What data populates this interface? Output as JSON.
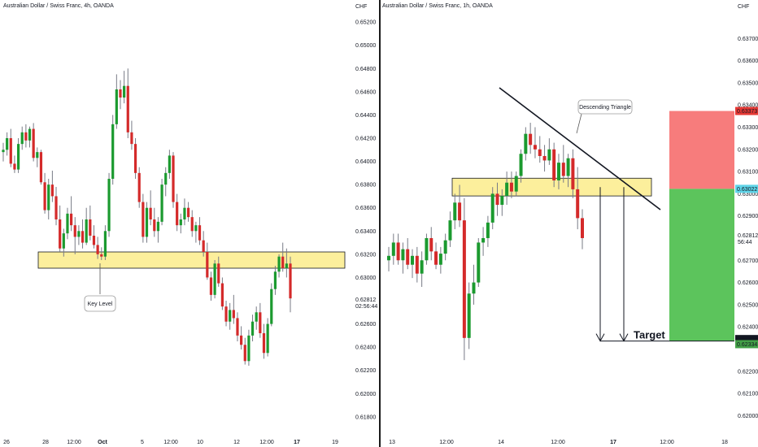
{
  "chart_data": [
    {
      "type": "candlestick",
      "title": "Australian Dollar / Swiss Franc, 4h, OANDA",
      "currency_label": "CHF",
      "y_ticks": [
        "0.65200",
        "0.65000",
        "0.64800",
        "0.64600",
        "0.64400",
        "0.64200",
        "0.64000",
        "0.63800",
        "0.63600",
        "0.63400",
        "0.63200",
        "0.63000",
        "0.62600",
        "0.62400",
        "0.62200",
        "0.62000",
        "0.61800"
      ],
      "price_badge": "0.62812",
      "countdown_badge": "02:56:44",
      "x_ticks": [
        "26",
        "28",
        "12:00",
        "Oct",
        "5",
        "12:00",
        "10",
        "12",
        "12:00",
        "17",
        "19"
      ],
      "ylim": [
        0.6175,
        0.6525
      ],
      "zone": [
        0.6308,
        0.6322
      ],
      "annotation": "Key Level",
      "colors": {
        "up": "#1b9a2f",
        "down": "#d42a2a",
        "zone": "#fcef9c",
        "wick": "#787b86"
      },
      "candles": [
        [
          0.6408,
          0.6416,
          0.64,
          0.641
        ],
        [
          0.641,
          0.6425,
          0.6405,
          0.642
        ],
        [
          0.642,
          0.6428,
          0.6395,
          0.6398
        ],
        [
          0.6398,
          0.6405,
          0.639,
          0.6393
        ],
        [
          0.6393,
          0.642,
          0.639,
          0.6415
        ],
        [
          0.6415,
          0.643,
          0.641,
          0.6425
        ],
        [
          0.6425,
          0.6432,
          0.6412,
          0.6418
        ],
        [
          0.6418,
          0.643,
          0.6412,
          0.6428
        ],
        [
          0.6428,
          0.6433,
          0.64,
          0.6403
        ],
        [
          0.6403,
          0.6412,
          0.6395,
          0.6408
        ],
        [
          0.6408,
          0.641,
          0.638,
          0.6382
        ],
        [
          0.6382,
          0.639,
          0.6355,
          0.6358
        ],
        [
          0.6358,
          0.6385,
          0.635,
          0.638
        ],
        [
          0.638,
          0.6392,
          0.6365,
          0.637
        ],
        [
          0.637,
          0.6378,
          0.6345,
          0.635
        ],
        [
          0.635,
          0.6362,
          0.6322,
          0.6325
        ],
        [
          0.6325,
          0.6342,
          0.6318,
          0.6338
        ],
        [
          0.6338,
          0.636,
          0.6333,
          0.6355
        ],
        [
          0.6355,
          0.637,
          0.634,
          0.6345
        ],
        [
          0.6345,
          0.6352,
          0.632,
          0.6335
        ],
        [
          0.6335,
          0.6345,
          0.6328,
          0.634
        ],
        [
          0.634,
          0.635,
          0.6325,
          0.633
        ],
        [
          0.633,
          0.636,
          0.6328,
          0.635
        ],
        [
          0.635,
          0.6362,
          0.6332,
          0.6336
        ],
        [
          0.6336,
          0.6345,
          0.6325,
          0.6328
        ],
        [
          0.6328,
          0.6335,
          0.6316,
          0.632
        ],
        [
          0.632,
          0.6326,
          0.6315,
          0.6318
        ],
        [
          0.6318,
          0.6345,
          0.6315,
          0.634
        ],
        [
          0.634,
          0.639,
          0.6335,
          0.6385
        ],
        [
          0.6385,
          0.644,
          0.638,
          0.6432
        ],
        [
          0.6432,
          0.6475,
          0.6428,
          0.6462
        ],
        [
          0.6462,
          0.647,
          0.6445,
          0.6455
        ],
        [
          0.6455,
          0.6478,
          0.645,
          0.6465
        ],
        [
          0.6465,
          0.648,
          0.642,
          0.6425
        ],
        [
          0.6425,
          0.6435,
          0.641,
          0.6415
        ],
        [
          0.6415,
          0.642,
          0.6385,
          0.639
        ],
        [
          0.639,
          0.6395,
          0.636,
          0.6365
        ],
        [
          0.6365,
          0.6372,
          0.633,
          0.6335
        ],
        [
          0.6335,
          0.6365,
          0.633,
          0.636
        ],
        [
          0.636,
          0.6375,
          0.6345,
          0.635
        ],
        [
          0.635,
          0.636,
          0.6335,
          0.634
        ],
        [
          0.634,
          0.6352,
          0.633,
          0.6348
        ],
        [
          0.6348,
          0.6385,
          0.6345,
          0.638
        ],
        [
          0.638,
          0.6395,
          0.637,
          0.639
        ],
        [
          0.639,
          0.641,
          0.6385,
          0.6405
        ],
        [
          0.6405,
          0.6408,
          0.636,
          0.6365
        ],
        [
          0.6365,
          0.6372,
          0.634,
          0.6345
        ],
        [
          0.6345,
          0.6355,
          0.6338,
          0.635
        ],
        [
          0.635,
          0.6368,
          0.6345,
          0.636
        ],
        [
          0.636,
          0.6365,
          0.6348,
          0.6352
        ],
        [
          0.6352,
          0.6358,
          0.6335,
          0.634
        ],
        [
          0.634,
          0.6348,
          0.633,
          0.6345
        ],
        [
          0.6345,
          0.6352,
          0.6328,
          0.6332
        ],
        [
          0.6332,
          0.634,
          0.6318,
          0.6322
        ],
        [
          0.6322,
          0.633,
          0.6298,
          0.63
        ],
        [
          0.63,
          0.6305,
          0.628,
          0.6285
        ],
        [
          0.6285,
          0.6315,
          0.6282,
          0.6312
        ],
        [
          0.6312,
          0.6318,
          0.6292,
          0.6295
        ],
        [
          0.6295,
          0.63,
          0.6272,
          0.6275
        ],
        [
          0.6275,
          0.628,
          0.6258,
          0.6262
        ],
        [
          0.6262,
          0.6278,
          0.6255,
          0.6272
        ],
        [
          0.6272,
          0.6285,
          0.626,
          0.6265
        ],
        [
          0.6265,
          0.627,
          0.6245,
          0.625
        ],
        [
          0.625,
          0.6258,
          0.6238,
          0.6242
        ],
        [
          0.6242,
          0.6248,
          0.6225,
          0.6228
        ],
        [
          0.6228,
          0.6255,
          0.6224,
          0.625
        ],
        [
          0.625,
          0.6268,
          0.6245,
          0.6262
        ],
        [
          0.6262,
          0.6275,
          0.6255,
          0.627
        ],
        [
          0.627,
          0.6278,
          0.6248,
          0.6252
        ],
        [
          0.6252,
          0.626,
          0.623,
          0.6235
        ],
        [
          0.6235,
          0.6265,
          0.6232,
          0.626
        ],
        [
          0.626,
          0.6295,
          0.6258,
          0.629
        ],
        [
          0.629,
          0.631,
          0.6285,
          0.6305
        ],
        [
          0.6305,
          0.632,
          0.63,
          0.6318
        ],
        [
          0.6318,
          0.633,
          0.6305,
          0.6308
        ],
        [
          0.6308,
          0.6325,
          0.63,
          0.6312
        ],
        [
          0.6312,
          0.6318,
          0.627,
          0.6282
        ]
      ]
    },
    {
      "type": "candlestick",
      "title": "Australian Dollar / Swiss Franc, 1h, OANDA",
      "currency_label": "CHF",
      "y_ticks": [
        "0.63700",
        "0.63600",
        "0.63500",
        "0.63400",
        "0.63300",
        "0.63200",
        "0.63100",
        "0.63000",
        "0.62900",
        "0.62700",
        "0.62600",
        "0.62500",
        "0.62400",
        "0.62200",
        "0.62100",
        "0.62000"
      ],
      "price_badges": {
        "stop": "0.63373",
        "entry": "0.63022",
        "current": "0.62812",
        "countdown": "56:44",
        "target": "0.62336",
        "target2": "0.62334"
      },
      "x_ticks": [
        "13",
        "12:00",
        "14",
        "12:00",
        "17",
        "12:00",
        "18"
      ],
      "ylim": [
        0.6195,
        0.638
      ],
      "zone": [
        0.6299,
        0.6307
      ],
      "annotations": [
        "Descending Triangle",
        "Target"
      ],
      "colors": {
        "up": "#1b9a2f",
        "down": "#d42a2a",
        "zone": "#fcef9c",
        "stop": "#f77c7c",
        "target_box": "#5cc45c"
      },
      "candles": [
        [
          0.627,
          0.6276,
          0.6265,
          0.6272
        ],
        [
          0.6272,
          0.6282,
          0.6268,
          0.6278
        ],
        [
          0.6278,
          0.6282,
          0.6268,
          0.627
        ],
        [
          0.627,
          0.6278,
          0.6264,
          0.6275
        ],
        [
          0.6275,
          0.628,
          0.6266,
          0.6268
        ],
        [
          0.6268,
          0.6275,
          0.6262,
          0.6272
        ],
        [
          0.6272,
          0.6276,
          0.626,
          0.6264
        ],
        [
          0.6264,
          0.6274,
          0.6258,
          0.627
        ],
        [
          0.627,
          0.6282,
          0.6268,
          0.628
        ],
        [
          0.628,
          0.6285,
          0.627,
          0.6274
        ],
        [
          0.6274,
          0.6278,
          0.6266,
          0.6268
        ],
        [
          0.6268,
          0.6276,
          0.6264,
          0.6273
        ],
        [
          0.6273,
          0.6282,
          0.627,
          0.6279
        ],
        [
          0.6279,
          0.6292,
          0.6276,
          0.6288
        ],
        [
          0.6288,
          0.63,
          0.6284,
          0.6296
        ],
        [
          0.6296,
          0.6304,
          0.6285,
          0.6288
        ],
        [
          0.6288,
          0.6298,
          0.6225,
          0.6235
        ],
        [
          0.6235,
          0.626,
          0.623,
          0.6255
        ],
        [
          0.6255,
          0.6268,
          0.625,
          0.626
        ],
        [
          0.626,
          0.628,
          0.6258,
          0.6278
        ],
        [
          0.6278,
          0.6285,
          0.6272,
          0.628
        ],
        [
          0.628,
          0.629,
          0.6276,
          0.6287
        ],
        [
          0.6287,
          0.6303,
          0.6284,
          0.63
        ],
        [
          0.63,
          0.6305,
          0.629,
          0.6295
        ],
        [
          0.6295,
          0.6302,
          0.629,
          0.6299
        ],
        [
          0.6299,
          0.631,
          0.6295,
          0.6305
        ],
        [
          0.6305,
          0.631,
          0.6298,
          0.6301
        ],
        [
          0.6301,
          0.631,
          0.6299,
          0.6308
        ],
        [
          0.6308,
          0.632,
          0.6305,
          0.6318
        ],
        [
          0.6318,
          0.633,
          0.6315,
          0.6327
        ],
        [
          0.6327,
          0.6332,
          0.6318,
          0.6322
        ],
        [
          0.6322,
          0.633,
          0.6316,
          0.632
        ],
        [
          0.632,
          0.6326,
          0.6314,
          0.6317
        ],
        [
          0.6317,
          0.6322,
          0.631,
          0.6315
        ],
        [
          0.6315,
          0.6325,
          0.6313,
          0.632
        ],
        [
          0.632,
          0.6323,
          0.6303,
          0.6306
        ],
        [
          0.6306,
          0.6318,
          0.6302,
          0.6314
        ],
        [
          0.6314,
          0.6322,
          0.6305,
          0.6308
        ],
        [
          0.6308,
          0.6318,
          0.6303,
          0.6316
        ],
        [
          0.6316,
          0.632,
          0.6298,
          0.6302
        ],
        [
          0.6302,
          0.6312,
          0.6284,
          0.6289
        ],
        [
          0.6289,
          0.6293,
          0.6275,
          0.628
        ]
      ]
    }
  ]
}
